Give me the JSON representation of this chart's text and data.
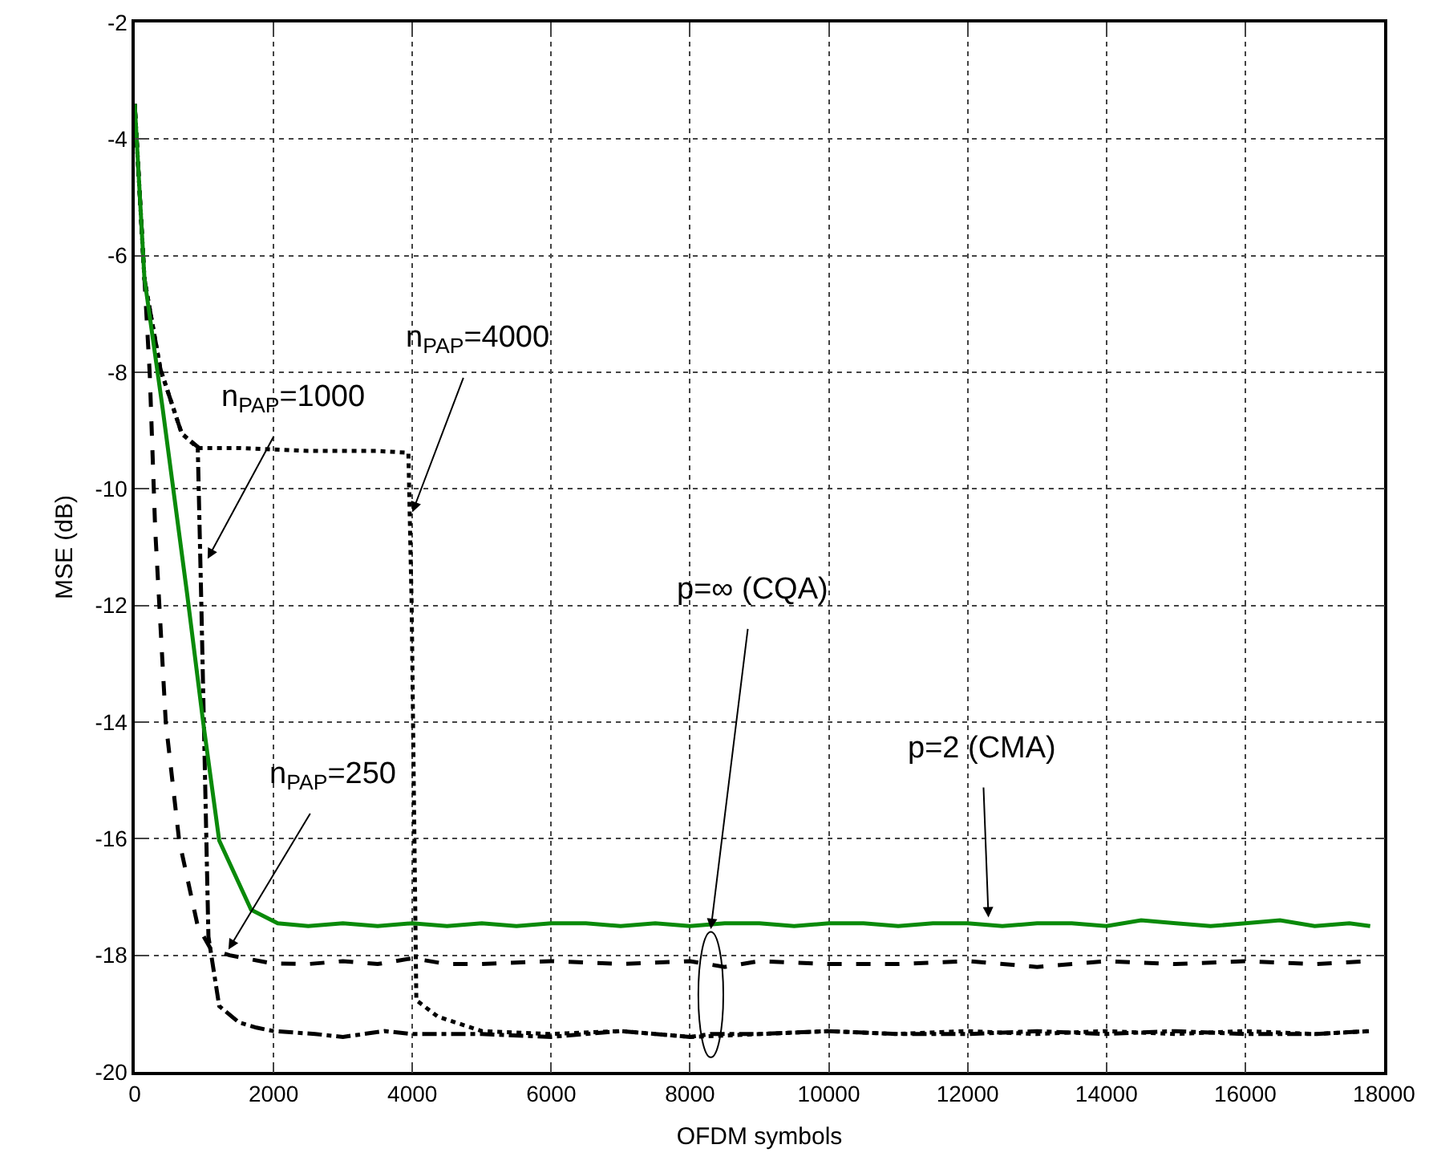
{
  "chart_data": {
    "type": "line",
    "xlabel": "OFDM symbols",
    "ylabel": "MSE (dB)",
    "xlim": [
      0,
      18000
    ],
    "ylim": [
      -20,
      -2
    ],
    "xticks": [
      0,
      2000,
      4000,
      6000,
      8000,
      10000,
      12000,
      14000,
      16000,
      18000
    ],
    "yticks": [
      -20,
      -18,
      -16,
      -14,
      -12,
      -10,
      -8,
      -6,
      -4,
      -2
    ],
    "grid": true,
    "legend": false,
    "marker": "none",
    "series": [
      {
        "color": "#000000",
        "line_style": "dotted",
        "x": [
          0,
          140,
          371,
          677,
          908,
          1500,
          2500,
          3500,
          3943,
          3990,
          4057,
          4364,
          5000,
          6000,
          7000,
          8000,
          9000,
          10000,
          11000,
          12000,
          13000,
          14000,
          15000,
          16000,
          17000,
          17800
        ],
        "values": [
          -3.4,
          -6.4,
          -7.95,
          -9.05,
          -9.3,
          -9.3,
          -9.35,
          -9.35,
          -9.38,
          -12,
          -18.77,
          -19.05,
          -19.3,
          -19.35,
          -19.3,
          -19.4,
          -19.35,
          -19.3,
          -19.35,
          -19.3,
          -19.35,
          -19.3,
          -19.35,
          -19.3,
          -19.35,
          -19.3
        ]
      },
      {
        "color": "#000000",
        "line_style": "dashdot",
        "x": [
          0,
          140,
          371,
          677,
          908,
          960,
          1062,
          1217,
          1500,
          1753,
          2000,
          2600,
          3000,
          3600,
          4000,
          5000,
          6000,
          7000,
          8000,
          8300,
          9000,
          10000,
          11000,
          12000,
          13000,
          14000,
          15000,
          16000,
          17000,
          17800
        ],
        "values": [
          -3.4,
          -6.4,
          -7.95,
          -9.05,
          -9.28,
          -12,
          -17.68,
          -18.87,
          -19.15,
          -19.24,
          -19.3,
          -19.35,
          -19.4,
          -19.3,
          -19.35,
          -19.35,
          -19.4,
          -19.3,
          -19.4,
          -19.35,
          -19.35,
          -19.3,
          -19.35,
          -19.35,
          -19.3,
          -19.35,
          -19.3,
          -19.35,
          -19.35,
          -19.3
        ]
      },
      {
        "color": "#000000",
        "line_style": "dashed",
        "x": [
          0,
          140,
          217,
          295,
          447,
          640,
          908,
          1100,
          1369,
          1985,
          2500,
          3000,
          3500,
          4000,
          4500,
          5000,
          6000,
          7000,
          8000,
          8500,
          9000,
          10000,
          11000,
          12000,
          13000,
          14000,
          15000,
          16000,
          17000,
          17800
        ],
        "values": [
          -3.4,
          -6.4,
          -8.04,
          -10.7,
          -14.0,
          -16.03,
          -17.5,
          -17.9,
          -18.0,
          -18.14,
          -18.15,
          -18.1,
          -18.15,
          -18.05,
          -18.15,
          -18.15,
          -18.1,
          -18.15,
          -18.1,
          -18.2,
          -18.1,
          -18.15,
          -18.15,
          -18.1,
          -18.2,
          -18.1,
          -18.15,
          -18.1,
          -18.15,
          -18.1
        ]
      },
      {
        "color": "#0a8a0a",
        "line_style": "solid",
        "x": [
          0,
          140,
          400,
          755,
          986,
          1217,
          1677,
          2060,
          2500,
          3000,
          3500,
          4000,
          4500,
          5000,
          5500,
          6000,
          6500,
          7000,
          7500,
          8000,
          8500,
          9000,
          9500,
          10000,
          10500,
          11000,
          11500,
          12000,
          12500,
          13000,
          13500,
          14000,
          14500,
          15000,
          15500,
          16000,
          16500,
          17000,
          17500,
          17800
        ],
        "values": [
          -3.4,
          -6.39,
          -8.6,
          -11.8,
          -14.0,
          -16.03,
          -17.22,
          -17.45,
          -17.5,
          -17.45,
          -17.5,
          -17.45,
          -17.5,
          -17.45,
          -17.5,
          -17.45,
          -17.45,
          -17.5,
          -17.45,
          -17.5,
          -17.45,
          -17.45,
          -17.5,
          -17.45,
          -17.45,
          -17.5,
          -17.45,
          -17.45,
          -17.5,
          -17.45,
          -17.45,
          -17.5,
          -17.4,
          -17.45,
          -17.5,
          -17.45,
          -17.4,
          -17.5,
          -17.45,
          -17.5
        ]
      }
    ],
    "annotations": [
      {
        "text": "n$_{PAP}$=1000",
        "x": 1050,
        "y": -11.2
      },
      {
        "text": "n$_{PAP}$=4000",
        "x": 4000,
        "y": -10.4
      },
      {
        "text": "n$_{PAP}$=250",
        "x": 1350,
        "y": -17.9
      },
      {
        "text": "p=∞ (CQA)",
        "x": 8300,
        "y": -17.55
      },
      {
        "text": "p=2 (CMA)",
        "x": 12300,
        "y": -17.35
      }
    ]
  }
}
